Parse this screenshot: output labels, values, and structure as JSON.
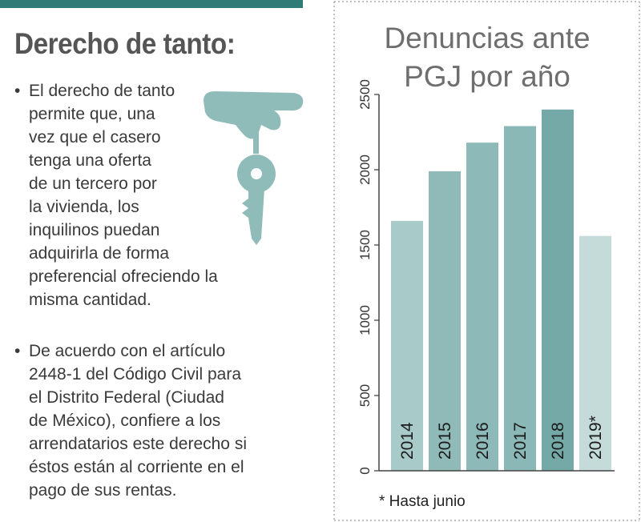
{
  "infobox": {
    "title": "Derecho de tanto:",
    "bullet_mark": "•",
    "bullets": [
      {
        "lines": [
          "El derecho de tanto",
          "permite que, una",
          "vez que el casero",
          "tenga una oferta",
          "de un tercero por",
          "la vivienda, los",
          "inquilinos puedan",
          "adquirirla de forma",
          "preferencial ofreciendo la",
          "misma cantidad."
        ]
      },
      {
        "lines": [
          "De acuerdo con el artículo",
          "2448-1 del Código Civil para",
          "el Distrito Federal (Ciudad",
          "de México), confiere a los",
          "arrendatarios este derecho si",
          "éstos están al corriente en el",
          "pago de sus rentas."
        ]
      }
    ],
    "icon": "hand-holding-key-icon",
    "colors": {
      "top_bar": "#2e7b77",
      "icon": "#8fbcb8"
    }
  },
  "chart_data": {
    "type": "bar",
    "title_lines": [
      "Denuncias ante",
      "PGJ por año"
    ],
    "categories": [
      "2014",
      "2015",
      "2016",
      "2017",
      "2018",
      "2019*"
    ],
    "values": [
      1660,
      1990,
      2180,
      2290,
      2400,
      1560
    ],
    "colors": [
      "#a8cac9",
      "#8fbab8",
      "#8dbab8",
      "#8ab8b6",
      "#74a9a7",
      "#c4dbd9"
    ],
    "ylim": [
      0,
      2500
    ],
    "yticks": [
      0,
      500,
      1000,
      1500,
      2000,
      2500
    ],
    "footnote": "* Hasta junio",
    "grid": false
  }
}
